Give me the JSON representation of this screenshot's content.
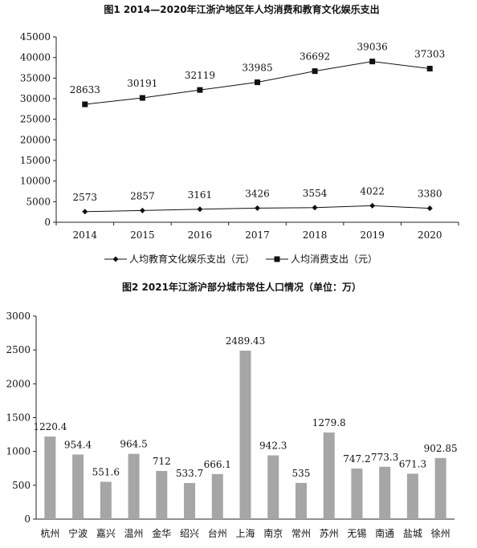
{
  "chart_data": [
    {
      "type": "line",
      "title": "图1   2014—2020年江浙沪地区年人均消费和教育文化娱乐支出",
      "categories": [
        "2014",
        "2015",
        "2016",
        "2017",
        "2018",
        "2019",
        "2020"
      ],
      "series": [
        {
          "name": "人均教育文化娱乐支出（元）",
          "marker": "diamond",
          "values": [
            2573,
            2857,
            3161,
            3426,
            3554,
            4022,
            3380
          ]
        },
        {
          "name": "人均消费支出（元）",
          "marker": "square",
          "values": [
            28633,
            30191,
            32119,
            33985,
            36692,
            39036,
            37303
          ]
        }
      ],
      "ylim": [
        0,
        45000
      ],
      "yticks": [
        "0",
        "5000",
        "10000",
        "15000",
        "20000",
        "25000",
        "30000",
        "35000",
        "40000",
        "45000"
      ],
      "legend_position": "bottom",
      "grid": false
    },
    {
      "type": "bar",
      "title": "图2   2021年江浙沪部分城市常住人口情况（单位：万）",
      "categories": [
        "杭州",
        "宁波",
        "嘉兴",
        "温州",
        "金华",
        "绍兴",
        "台州",
        "上海",
        "南京",
        "常州",
        "苏州",
        "无锡",
        "南通",
        "盐城",
        "徐州"
      ],
      "values": [
        1220.4,
        954.4,
        551.6,
        964.5,
        712,
        533.7,
        666.1,
        2489.43,
        942.3,
        535,
        1279.8,
        747.2,
        773.3,
        671.3,
        902.85
      ],
      "ylim": [
        0,
        3000
      ],
      "yticks": [
        "0",
        "500",
        "1000",
        "1500",
        "2000",
        "2500",
        "3000"
      ],
      "bar_color": "#a6a6a6",
      "grid": false
    }
  ]
}
